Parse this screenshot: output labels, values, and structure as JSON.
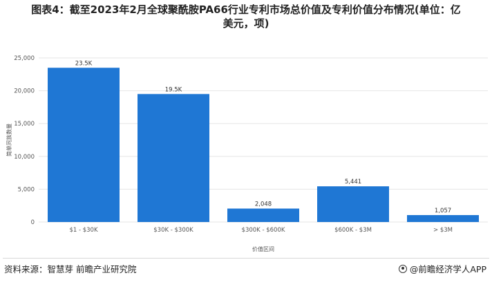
{
  "header": {
    "title_line1": "图表4：截至2023年2月全球聚酰胺PA66行业专利市场总价值及专利价值分布情况(单位：亿",
    "title_line2": "美元，项)"
  },
  "footer": {
    "source": "资料来源：智慧芽 前瞻产业研究院",
    "brand": "@前瞻经济学人APP"
  },
  "colors": {
    "bar": "#1f77d4",
    "grid": "#e5e5e5",
    "text": "#555555"
  },
  "chart_data": {
    "type": "bar",
    "title": "",
    "xlabel": "价值区间",
    "ylabel": "简单同族数量",
    "ylim": [
      0,
      25000
    ],
    "yticks": [
      0,
      5000,
      10000,
      15000,
      20000,
      25000
    ],
    "ytick_labels": [
      "0",
      "5,000",
      "10,000",
      "15,000",
      "20,000",
      "25,000"
    ],
    "categories": [
      "$1 - $30K",
      "$30K - $300K",
      "$300K - $600K",
      "$600K - $3M",
      "> $3M"
    ],
    "values": [
      23500,
      19500,
      2048,
      5441,
      1057
    ],
    "data_labels": [
      "23.5K",
      "19.5K",
      "2,048",
      "5,441",
      "1,057"
    ],
    "grid": true,
    "legend": "none"
  }
}
